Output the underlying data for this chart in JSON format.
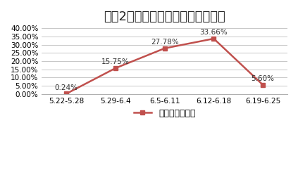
{
  "title": "图表2：三年期定增平均发行折价率",
  "categories": [
    "5.22-5.28",
    "5.29-6.4",
    "6.5-6.11",
    "6.12-6.18",
    "6.19-6.25"
  ],
  "values": [
    0.0024,
    0.1575,
    0.2778,
    0.3366,
    0.056
  ],
  "labels": [
    "0.24%",
    "15.75%",
    "27.78%",
    "33.66%",
    "5.60%"
  ],
  "line_color": "#C0504D",
  "marker": "s",
  "marker_color": "#C0504D",
  "legend_label": "平均发行折价率",
  "ylim": [
    0.0,
    0.4
  ],
  "yticks": [
    0.0,
    0.05,
    0.1,
    0.15,
    0.2,
    0.25,
    0.3,
    0.35,
    0.4
  ],
  "ytick_labels": [
    "0.00%",
    "5.00%",
    "10.00%",
    "15.00%",
    "20.00%",
    "25.00%",
    "30.00%",
    "35.00%",
    "40.00%"
  ],
  "bg_color": "#FFFFFF",
  "grid_color": "#B0B0B0",
  "title_fontsize": 13,
  "label_fontsize": 7.5,
  "tick_fontsize": 7.5,
  "legend_fontsize": 9
}
